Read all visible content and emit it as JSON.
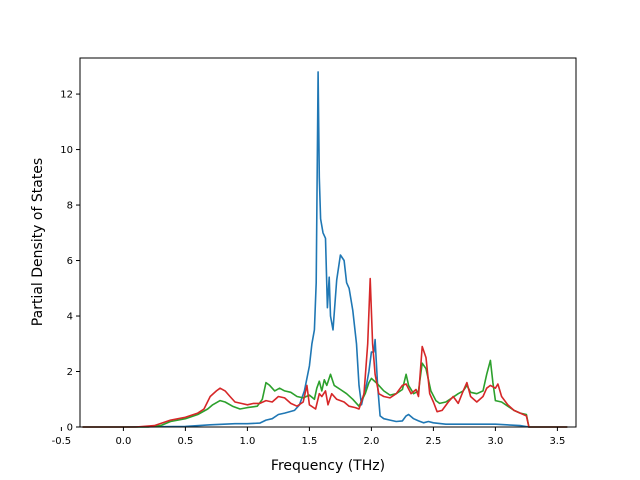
{
  "chart_data": {
    "type": "line",
    "title": "",
    "xlabel": "Frequency (THz)",
    "ylabel": "Partial Density of States",
    "xlim": [
      -0.35,
      3.65
    ],
    "ylim": [
      0,
      13.3
    ],
    "x_ticks": [
      -0.5,
      0.0,
      0.5,
      1.0,
      1.5,
      2.0,
      2.5,
      3.0,
      3.5
    ],
    "y_ticks": [
      0,
      2,
      4,
      6,
      8,
      10,
      12
    ],
    "grid": false,
    "legend": "none",
    "series": [
      {
        "color": "#1f77b4",
        "points": [
          [
            -0.33,
            0
          ],
          [
            0.0,
            0
          ],
          [
            0.3,
            0.01
          ],
          [
            0.5,
            0.02
          ],
          [
            0.7,
            0.08
          ],
          [
            0.9,
            0.12
          ],
          [
            1.0,
            0.12
          ],
          [
            1.1,
            0.14
          ],
          [
            1.15,
            0.25
          ],
          [
            1.2,
            0.3
          ],
          [
            1.25,
            0.45
          ],
          [
            1.3,
            0.5
          ],
          [
            1.38,
            0.6
          ],
          [
            1.42,
            0.8
          ],
          [
            1.46,
            1.3
          ],
          [
            1.5,
            2.2
          ],
          [
            1.52,
            3.0
          ],
          [
            1.54,
            3.5
          ],
          [
            1.555,
            5.2
          ],
          [
            1.57,
            12.8
          ],
          [
            1.58,
            9.0
          ],
          [
            1.59,
            7.5
          ],
          [
            1.61,
            7.0
          ],
          [
            1.63,
            6.8
          ],
          [
            1.645,
            4.3
          ],
          [
            1.66,
            5.4
          ],
          [
            1.67,
            4.0
          ],
          [
            1.69,
            3.5
          ],
          [
            1.72,
            5.3
          ],
          [
            1.75,
            6.2
          ],
          [
            1.78,
            6.0
          ],
          [
            1.8,
            5.2
          ],
          [
            1.82,
            5.0
          ],
          [
            1.85,
            4.2
          ],
          [
            1.88,
            3.0
          ],
          [
            1.9,
            1.5
          ],
          [
            1.92,
            0.8
          ],
          [
            1.94,
            1.2
          ],
          [
            1.96,
            1.5
          ],
          [
            1.98,
            2.0
          ],
          [
            2.0,
            2.7
          ],
          [
            2.02,
            2.7
          ],
          [
            2.03,
            3.15
          ],
          [
            2.05,
            1.5
          ],
          [
            2.07,
            0.4
          ],
          [
            2.1,
            0.3
          ],
          [
            2.15,
            0.25
          ],
          [
            2.2,
            0.2
          ],
          [
            2.25,
            0.22
          ],
          [
            2.28,
            0.4
          ],
          [
            2.3,
            0.45
          ],
          [
            2.34,
            0.3
          ],
          [
            2.38,
            0.22
          ],
          [
            2.42,
            0.15
          ],
          [
            2.46,
            0.2
          ],
          [
            2.5,
            0.15
          ],
          [
            2.6,
            0.1
          ],
          [
            2.8,
            0.1
          ],
          [
            3.0,
            0.1
          ],
          [
            3.2,
            0.05
          ],
          [
            3.27,
            0
          ],
          [
            3.5,
            0
          ],
          [
            3.58,
            0
          ]
        ]
      },
      {
        "color": "#2ca02c",
        "points": [
          [
            -0.33,
            0
          ],
          [
            0.2,
            0
          ],
          [
            0.3,
            0.05
          ],
          [
            0.38,
            0.2
          ],
          [
            0.5,
            0.3
          ],
          [
            0.6,
            0.45
          ],
          [
            0.68,
            0.65
          ],
          [
            0.72,
            0.8
          ],
          [
            0.78,
            0.95
          ],
          [
            0.82,
            0.9
          ],
          [
            0.88,
            0.75
          ],
          [
            0.94,
            0.65
          ],
          [
            1.0,
            0.7
          ],
          [
            1.08,
            0.75
          ],
          [
            1.12,
            1.0
          ],
          [
            1.15,
            1.6
          ],
          [
            1.18,
            1.5
          ],
          [
            1.22,
            1.3
          ],
          [
            1.26,
            1.4
          ],
          [
            1.3,
            1.3
          ],
          [
            1.35,
            1.25
          ],
          [
            1.4,
            1.1
          ],
          [
            1.45,
            1.05
          ],
          [
            1.5,
            1.15
          ],
          [
            1.54,
            1.0
          ],
          [
            1.56,
            1.4
          ],
          [
            1.58,
            1.65
          ],
          [
            1.6,
            1.3
          ],
          [
            1.62,
            1.7
          ],
          [
            1.64,
            1.5
          ],
          [
            1.67,
            1.9
          ],
          [
            1.7,
            1.5
          ],
          [
            1.75,
            1.35
          ],
          [
            1.8,
            1.2
          ],
          [
            1.85,
            1.0
          ],
          [
            1.9,
            0.75
          ],
          [
            1.95,
            1.2
          ],
          [
            1.98,
            1.6
          ],
          [
            2.0,
            1.75
          ],
          [
            2.05,
            1.55
          ],
          [
            2.1,
            1.3
          ],
          [
            2.15,
            1.15
          ],
          [
            2.2,
            1.2
          ],
          [
            2.25,
            1.35
          ],
          [
            2.28,
            1.9
          ],
          [
            2.3,
            1.5
          ],
          [
            2.34,
            1.2
          ],
          [
            2.38,
            1.3
          ],
          [
            2.41,
            2.3
          ],
          [
            2.44,
            2.1
          ],
          [
            2.48,
            1.3
          ],
          [
            2.52,
            0.95
          ],
          [
            2.55,
            0.85
          ],
          [
            2.6,
            0.9
          ],
          [
            2.65,
            1.05
          ],
          [
            2.7,
            1.2
          ],
          [
            2.74,
            1.3
          ],
          [
            2.77,
            1.5
          ],
          [
            2.8,
            1.25
          ],
          [
            2.85,
            1.2
          ],
          [
            2.9,
            1.3
          ],
          [
            2.93,
            1.9
          ],
          [
            2.96,
            2.4
          ],
          [
            2.98,
            1.6
          ],
          [
            3.0,
            0.95
          ],
          [
            3.05,
            0.9
          ],
          [
            3.1,
            0.75
          ],
          [
            3.15,
            0.6
          ],
          [
            3.2,
            0.5
          ],
          [
            3.25,
            0.45
          ],
          [
            3.27,
            0
          ],
          [
            3.58,
            0
          ]
        ]
      },
      {
        "color": "#d62728",
        "points": [
          [
            -0.33,
            0
          ],
          [
            0.1,
            0
          ],
          [
            0.25,
            0.05
          ],
          [
            0.38,
            0.25
          ],
          [
            0.5,
            0.35
          ],
          [
            0.6,
            0.5
          ],
          [
            0.65,
            0.65
          ],
          [
            0.7,
            1.1
          ],
          [
            0.75,
            1.3
          ],
          [
            0.78,
            1.4
          ],
          [
            0.82,
            1.3
          ],
          [
            0.86,
            1.1
          ],
          [
            0.9,
            0.9
          ],
          [
            0.95,
            0.85
          ],
          [
            1.0,
            0.8
          ],
          [
            1.05,
            0.85
          ],
          [
            1.1,
            0.85
          ],
          [
            1.15,
            0.95
          ],
          [
            1.2,
            0.9
          ],
          [
            1.25,
            1.1
          ],
          [
            1.3,
            1.05
          ],
          [
            1.35,
            0.85
          ],
          [
            1.4,
            0.75
          ],
          [
            1.45,
            0.9
          ],
          [
            1.48,
            1.5
          ],
          [
            1.5,
            0.8
          ],
          [
            1.55,
            0.65
          ],
          [
            1.58,
            1.2
          ],
          [
            1.6,
            1.1
          ],
          [
            1.63,
            1.3
          ],
          [
            1.65,
            0.8
          ],
          [
            1.68,
            1.2
          ],
          [
            1.72,
            1.0
          ],
          [
            1.78,
            0.9
          ],
          [
            1.82,
            0.75
          ],
          [
            1.87,
            0.7
          ],
          [
            1.9,
            0.65
          ],
          [
            1.94,
            1.2
          ],
          [
            1.97,
            3.0
          ],
          [
            1.99,
            5.35
          ],
          [
            2.01,
            3.0
          ],
          [
            2.03,
            1.9
          ],
          [
            2.06,
            1.2
          ],
          [
            2.1,
            1.1
          ],
          [
            2.15,
            1.05
          ],
          [
            2.2,
            1.2
          ],
          [
            2.25,
            1.5
          ],
          [
            2.28,
            1.55
          ],
          [
            2.32,
            1.2
          ],
          [
            2.36,
            1.35
          ],
          [
            2.38,
            1.1
          ],
          [
            2.41,
            2.9
          ],
          [
            2.44,
            2.5
          ],
          [
            2.47,
            1.2
          ],
          [
            2.5,
            0.9
          ],
          [
            2.53,
            0.55
          ],
          [
            2.57,
            0.6
          ],
          [
            2.62,
            0.9
          ],
          [
            2.66,
            1.1
          ],
          [
            2.7,
            0.85
          ],
          [
            2.74,
            1.3
          ],
          [
            2.77,
            1.6
          ],
          [
            2.8,
            1.1
          ],
          [
            2.85,
            0.9
          ],
          [
            2.9,
            1.1
          ],
          [
            2.93,
            1.4
          ],
          [
            2.96,
            1.5
          ],
          [
            3.0,
            1.4
          ],
          [
            3.02,
            1.55
          ],
          [
            3.05,
            1.1
          ],
          [
            3.1,
            0.8
          ],
          [
            3.15,
            0.6
          ],
          [
            3.2,
            0.5
          ],
          [
            3.25,
            0.4
          ],
          [
            3.27,
            0
          ],
          [
            3.58,
            0
          ]
        ]
      }
    ]
  }
}
